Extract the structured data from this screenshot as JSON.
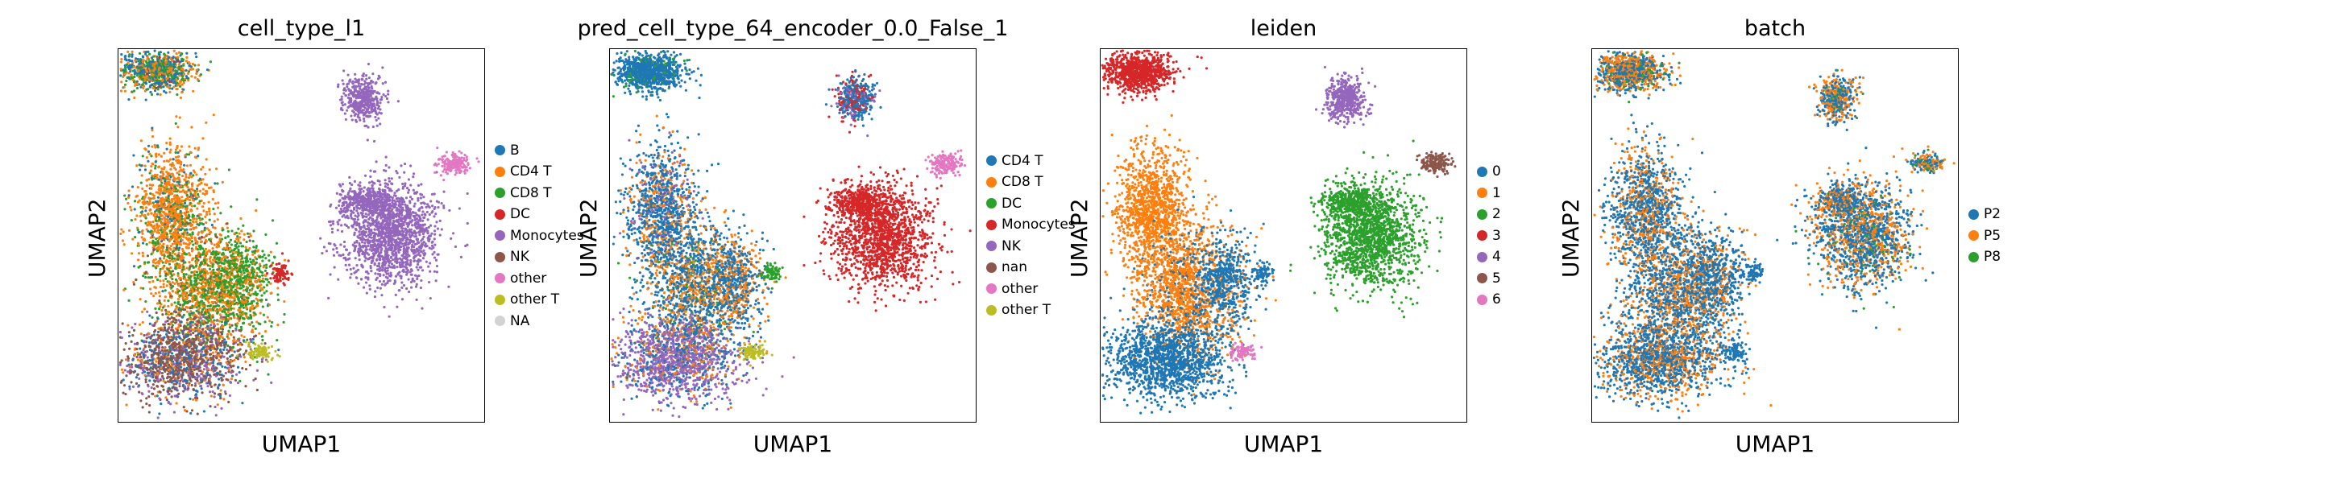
{
  "chart_data": [
    {
      "type": "scatter",
      "title": "cell_type_l1",
      "xlabel": "UMAP1",
      "ylabel": "UMAP2",
      "legend_position": "right",
      "series": [
        {
          "name": "B",
          "color": "#1f77b4"
        },
        {
          "name": "CD4 T",
          "color": "#ff7f0e"
        },
        {
          "name": "CD8 T",
          "color": "#2ca02c"
        },
        {
          "name": "DC",
          "color": "#d62728"
        },
        {
          "name": "Monocytes",
          "color": "#9467bd"
        },
        {
          "name": "NK",
          "color": "#8c564b"
        },
        {
          "name": "other",
          "color": "#e377c2"
        },
        {
          "name": "other T",
          "color": "#bcbd22"
        },
        {
          "name": "NA",
          "color": "#d3d3d3"
        }
      ]
    },
    {
      "type": "scatter",
      "title": "pred_cell_type_64_encoder_0.0_False_1",
      "xlabel": "UMAP1",
      "ylabel": "UMAP2",
      "legend_position": "right",
      "series": [
        {
          "name": "CD4 T",
          "color": "#1f77b4"
        },
        {
          "name": "CD8 T",
          "color": "#ff7f0e"
        },
        {
          "name": "DC",
          "color": "#2ca02c"
        },
        {
          "name": "Monocytes",
          "color": "#d62728"
        },
        {
          "name": "NK",
          "color": "#9467bd"
        },
        {
          "name": "nan",
          "color": "#8c564b"
        },
        {
          "name": "other",
          "color": "#e377c2"
        },
        {
          "name": "other T",
          "color": "#bcbd22"
        }
      ]
    },
    {
      "type": "scatter",
      "title": "leiden",
      "xlabel": "UMAP1",
      "ylabel": "UMAP2",
      "legend_position": "right",
      "series": [
        {
          "name": "0",
          "color": "#1f77b4"
        },
        {
          "name": "1",
          "color": "#ff7f0e"
        },
        {
          "name": "2",
          "color": "#2ca02c"
        },
        {
          "name": "3",
          "color": "#d62728"
        },
        {
          "name": "4",
          "color": "#9467bd"
        },
        {
          "name": "5",
          "color": "#8c564b"
        },
        {
          "name": "6",
          "color": "#e377c2"
        }
      ]
    },
    {
      "type": "scatter",
      "title": "batch",
      "xlabel": "UMAP1",
      "ylabel": "UMAP2",
      "legend_position": "right",
      "series": [
        {
          "name": "P2",
          "color": "#1f77b4"
        },
        {
          "name": "P5",
          "color": "#ff7f0e"
        },
        {
          "name": "P8",
          "color": "#2ca02c"
        }
      ]
    }
  ]
}
